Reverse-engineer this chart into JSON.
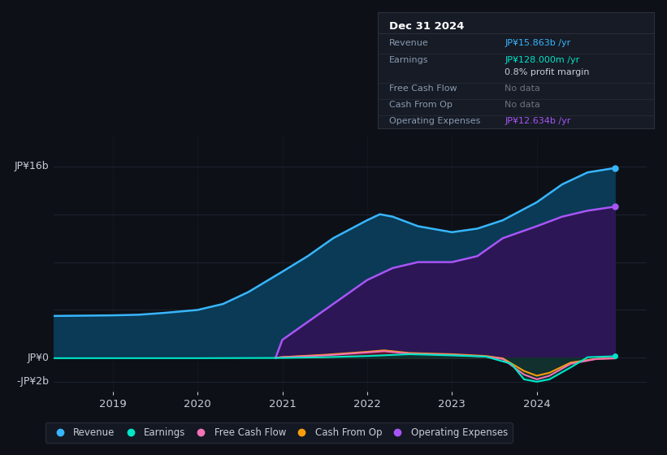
{
  "background_color": "#0d1117",
  "plot_bg_color": "#0d1117",
  "grid_color": "#1e2535",
  "text_color": "#c8cdd6",
  "ylim": [
    -2800000000.0,
    18500000000.0
  ],
  "xlim": [
    2018.3,
    2025.3
  ],
  "xticks": [
    2019,
    2020,
    2021,
    2022,
    2023,
    2024
  ],
  "series": {
    "revenue": {
      "color": "#38b6ff",
      "fill_color": "#0a3a55",
      "label": "Revenue",
      "x": [
        2018.3,
        2018.6,
        2019.0,
        2019.3,
        2019.6,
        2020.0,
        2020.3,
        2020.6,
        2021.0,
        2021.3,
        2021.6,
        2022.0,
        2022.15,
        2022.3,
        2022.6,
        2023.0,
        2023.3,
        2023.6,
        2024.0,
        2024.3,
        2024.6,
        2024.92
      ],
      "y": [
        3500000000.0,
        3520000000.0,
        3550000000.0,
        3600000000.0,
        3750000000.0,
        4000000000.0,
        4500000000.0,
        5500000000.0,
        7200000000.0,
        8500000000.0,
        10000000000.0,
        11500000000.0,
        12000000000.0,
        11800000000.0,
        11000000000.0,
        10500000000.0,
        10800000000.0,
        11500000000.0,
        13000000000.0,
        14500000000.0,
        15500000000.0,
        15863000000.0
      ]
    },
    "operating_expenses": {
      "color": "#a855f7",
      "fill_color": "#2d1655",
      "label": "Operating Expenses",
      "x": [
        2020.92,
        2021.0,
        2021.3,
        2021.6,
        2022.0,
        2022.3,
        2022.6,
        2023.0,
        2023.3,
        2023.6,
        2024.0,
        2024.3,
        2024.6,
        2024.92
      ],
      "y": [
        0.0,
        1500000000.0,
        3000000000.0,
        4500000000.0,
        6500000000.0,
        7500000000.0,
        8000000000.0,
        8000000000.0,
        8500000000.0,
        10000000000.0,
        11000000000.0,
        11800000000.0,
        12300000000.0,
        12634000000.0
      ]
    },
    "earnings": {
      "color": "#00e5c8",
      "fill_color": "#003830",
      "label": "Earnings",
      "x": [
        2018.3,
        2019.0,
        2019.5,
        2020.0,
        2020.5,
        2021.0,
        2021.5,
        2022.0,
        2022.5,
        2023.0,
        2023.4,
        2023.7,
        2023.85,
        2024.0,
        2024.15,
        2024.4,
        2024.6,
        2024.92
      ],
      "y": [
        -30000000.0,
        -30000000.0,
        -30000000.0,
        -30000000.0,
        -20000000.0,
        -10000000.0,
        50000000.0,
        150000000.0,
        300000000.0,
        200000000.0,
        100000000.0,
        -500000000.0,
        -1800000000.0,
        -2000000000.0,
        -1800000000.0,
        -800000000.0,
        50000000.0,
        128000000.0
      ]
    },
    "free_cash_flow": {
      "color": "#f472b6",
      "fill_color": "#5a1030",
      "label": "Free Cash Flow",
      "x": [
        2020.92,
        2021.0,
        2021.5,
        2022.0,
        2022.2,
        2022.5,
        2023.0,
        2023.4,
        2023.6,
        2023.85,
        2024.0,
        2024.15,
        2024.4,
        2024.7,
        2024.92
      ],
      "y": [
        0.0,
        50000000.0,
        200000000.0,
        450000000.0,
        550000000.0,
        350000000.0,
        250000000.0,
        100000000.0,
        -100000000.0,
        -1400000000.0,
        -1800000000.0,
        -1500000000.0,
        -500000000.0,
        -100000000.0,
        -50000000.0
      ]
    },
    "cash_from_op": {
      "color": "#f59e0b",
      "fill_color": "#5a3a00",
      "label": "Cash From Op",
      "x": [
        2020.92,
        2021.0,
        2021.5,
        2022.0,
        2022.2,
        2022.5,
        2023.0,
        2023.4,
        2023.6,
        2023.85,
        2024.0,
        2024.15,
        2024.4,
        2024.7,
        2024.92
      ],
      "y": [
        0.0,
        60000000.0,
        250000000.0,
        500000000.0,
        620000000.0,
        400000000.0,
        300000000.0,
        150000000.0,
        -50000000.0,
        -1100000000.0,
        -1500000000.0,
        -1250000000.0,
        -400000000.0,
        -80000000.0,
        -30000000.0
      ]
    }
  },
  "info_box": {
    "title": "Dec 31 2024",
    "rows": [
      {
        "label": "Revenue",
        "value": "JP¥15.863b /yr",
        "value_color": "#38b6ff"
      },
      {
        "label": "Earnings",
        "value": "JP¥128.000m /yr",
        "value_color": "#00e5c8"
      },
      {
        "label": "",
        "value": "0.8% profit margin",
        "value_color": "#c8cdd6"
      },
      {
        "label": "Free Cash Flow",
        "value": "No data",
        "value_color": "#6b7280"
      },
      {
        "label": "Cash From Op",
        "value": "No data",
        "value_color": "#6b7280"
      },
      {
        "label": "Operating Expenses",
        "value": "JP¥12.634b /yr",
        "value_color": "#a855f7"
      }
    ]
  },
  "legend": [
    {
      "label": "Revenue",
      "color": "#38b6ff"
    },
    {
      "label": "Earnings",
      "color": "#00e5c8"
    },
    {
      "label": "Free Cash Flow",
      "color": "#f472b6"
    },
    {
      "label": "Cash From Op",
      "color": "#f59e0b"
    },
    {
      "label": "Operating Expenses",
      "color": "#a855f7"
    }
  ]
}
